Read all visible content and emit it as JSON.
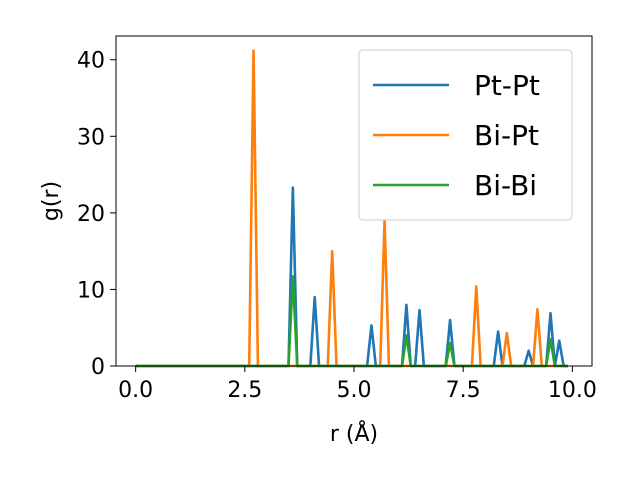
{
  "chart_data": {
    "type": "line",
    "xlabel": "r (Å)",
    "ylabel": "g(r)",
    "xlim": [
      -0.45,
      10.45
    ],
    "ylim": [
      0,
      43.1
    ],
    "xticks": [
      0.0,
      2.5,
      5.0,
      7.5,
      10.0
    ],
    "xtick_labels": [
      "0.0",
      "2.5",
      "5.0",
      "7.5",
      "10.0"
    ],
    "yticks": [
      0,
      10,
      20,
      30,
      40
    ],
    "ytick_labels": [
      "0",
      "10",
      "20",
      "30",
      "40"
    ],
    "grid": false,
    "legend_position": "top-right",
    "series": [
      {
        "name": "Pt-Pt",
        "color": "#1f77b4",
        "peaks": [
          [
            3.6,
            23.3
          ],
          [
            4.1,
            9.0
          ],
          [
            5.4,
            5.3
          ],
          [
            6.2,
            8.0
          ],
          [
            6.5,
            7.3
          ],
          [
            7.2,
            6.0
          ],
          [
            8.3,
            4.5
          ],
          [
            9.0,
            2.0
          ],
          [
            9.5,
            6.9
          ],
          [
            9.7,
            3.3
          ]
        ]
      },
      {
        "name": "Bi-Pt",
        "color": "#ff7f0e",
        "peaks": [
          [
            2.7,
            41.2
          ],
          [
            4.5,
            15.0
          ],
          [
            5.7,
            19.0
          ],
          [
            7.8,
            10.4
          ],
          [
            8.5,
            4.3
          ],
          [
            9.2,
            7.4
          ]
        ]
      },
      {
        "name": "Bi-Bi",
        "color": "#2ca02c",
        "peaks": [
          [
            3.6,
            11.7
          ],
          [
            6.2,
            4.0
          ],
          [
            7.2,
            3.0
          ],
          [
            9.5,
            3.5
          ]
        ]
      }
    ],
    "x_range": [
      0.0,
      9.9
    ],
    "x_step": 0.1
  }
}
